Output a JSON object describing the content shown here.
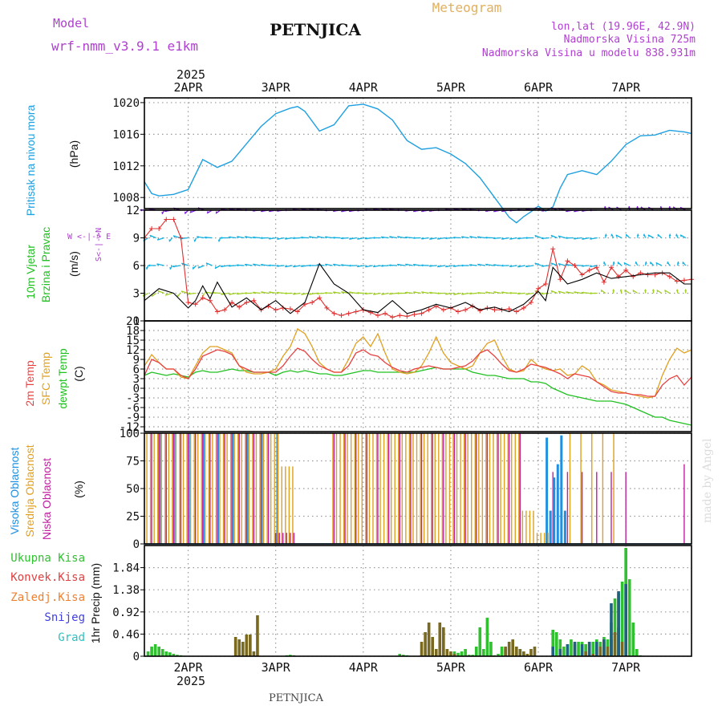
{
  "header": {
    "model_label": "Model",
    "model_name": "wrf-nmm_v3.9.1 e1km",
    "station": "PETNJICA",
    "product": "Meteogram",
    "lonlat": "lon,lat (19.96E, 42.9N)",
    "altitude": "Nadmorska Visina 725m",
    "model_altitude": "Nadmorska Visina u modelu 838.931m",
    "watermark": "made by Angel",
    "footer_station": "PETNJICA"
  },
  "colors": {
    "pressure": "#1ea0e0",
    "wind_speed": "#000000",
    "wind_gust": "#e03030",
    "temp_2m": "#e84040",
    "temp_sfc": "#e0a020",
    "dewpoint": "#20c020",
    "cloud_high": "#2090e0",
    "cloud_mid": "#e0a020",
    "cloud_low": "#c020a0",
    "precip_total": "#30c030",
    "precip_conv": "#e04040",
    "precip_frozen": "#f08030",
    "precip_snow": "#4040e0",
    "precip_hail": "#30c0c0",
    "accent_purple": "#b040d0"
  },
  "time_axis": {
    "year_label": "2025",
    "day_labels": [
      "2APR",
      "3APR",
      "4APR",
      "5APR",
      "6APR",
      "7APR"
    ],
    "start_hour": -12,
    "end_hour": 138
  },
  "chart_data": [
    {
      "type": "line",
      "panel": "pressure",
      "ylabel": "Pritisak na nivou mora",
      "unit": "(hPa)",
      "yticks": [
        1008,
        1012,
        1016,
        1020
      ],
      "ylim": [
        1006.6,
        1020.6
      ],
      "x_hours": [
        -12,
        -10,
        -8,
        -4,
        0,
        4,
        6,
        8,
        12,
        16,
        20,
        24,
        28,
        30,
        32,
        36,
        40,
        44,
        48,
        50,
        52,
        56,
        60,
        64,
        68,
        72,
        76,
        80,
        84,
        88,
        90,
        92,
        94,
        96,
        98,
        100,
        102,
        104,
        108,
        112,
        116,
        120,
        124,
        128,
        132,
        136,
        138
      ],
      "values": [
        1010,
        1008.5,
        1008.2,
        1008.4,
        1009,
        1012.8,
        1012.3,
        1011.8,
        1012.6,
        1014.8,
        1017,
        1018.6,
        1019.3,
        1019.5,
        1018.9,
        1016.4,
        1017.2,
        1019.6,
        1019.8,
        1019.5,
        1019.2,
        1017.8,
        1015.2,
        1014.1,
        1014.3,
        1013.5,
        1012.3,
        1010.5,
        1008,
        1005.5,
        1004.8,
        1005.6,
        1006.2,
        1006.9,
        1006.3,
        1006.8,
        1009.2,
        1010.9,
        1011.4,
        1010.9,
        1012.6,
        1014.7,
        1015.8,
        1015.9,
        1016.5,
        1016.3,
        1016.1
      ]
    },
    {
      "type": "line",
      "panel": "wind",
      "ylabel": "10m Vjetar Brzina i Pravac",
      "unit": "(m/s)",
      "compass": "W <-|-> E",
      "compass_v": "S<-|->N",
      "yticks": [
        0,
        3,
        6,
        9,
        12
      ],
      "ylim": [
        0,
        12
      ],
      "x_hours": [
        -12,
        -8,
        -4,
        0,
        2,
        4,
        6,
        8,
        12,
        14,
        16,
        20,
        24,
        28,
        32,
        36,
        40,
        44,
        48,
        52,
        56,
        60,
        64,
        68,
        72,
        76,
        80,
        84,
        88,
        92,
        96,
        98,
        100,
        104,
        108,
        112,
        116,
        120,
        124,
        128,
        132,
        136,
        138
      ],
      "speed": [
        2.2,
        3.5,
        3,
        1.4,
        2.2,
        3.8,
        2.4,
        4.2,
        1.5,
        2,
        2.5,
        1.2,
        2.2,
        0.8,
        2,
        6.2,
        4,
        3,
        1.2,
        0.9,
        2.2,
        0.8,
        1.2,
        1.8,
        1.4,
        2,
        1.2,
        1.5,
        1,
        1.8,
        3.2,
        2.2,
        5.8,
        4,
        4.5,
        5.2,
        4.6,
        4.8,
        5,
        5.2,
        5.2,
        4,
        4
      ],
      "gust_x_hours": [
        -12,
        -10,
        -8,
        -6,
        -4,
        -2,
        0,
        2,
        4,
        6,
        8,
        10,
        12,
        14,
        16,
        18,
        20,
        22,
        24,
        26,
        28,
        30,
        32,
        34,
        36,
        38,
        40,
        42,
        44,
        46,
        48,
        50,
        52,
        54,
        56,
        58,
        60,
        62,
        64,
        66,
        68,
        70,
        72,
        74,
        76,
        78,
        80,
        82,
        84,
        86,
        88,
        90,
        92,
        94,
        96,
        98,
        100,
        102,
        104,
        106,
        108,
        110,
        112,
        114,
        116,
        118,
        120,
        122,
        124,
        126,
        128,
        130,
        132,
        134,
        136,
        138
      ],
      "gust": [
        9,
        10,
        10,
        11,
        11,
        9,
        2,
        1.8,
        2.5,
        2.2,
        1,
        1.2,
        2,
        1.5,
        2,
        2.2,
        1.2,
        1.6,
        1.2,
        1.4,
        1.3,
        1,
        1.8,
        2,
        2.5,
        1.4,
        0.8,
        0.6,
        0.8,
        1,
        1.2,
        0.9,
        0.6,
        0.8,
        0.4,
        0.6,
        0.5,
        0.7,
        0.8,
        1.2,
        1.6,
        1.2,
        1.4,
        1,
        1.2,
        1.6,
        1.1,
        1.4,
        1.2,
        1.2,
        1.3,
        1,
        1.4,
        2,
        3.5,
        4,
        7.8,
        4.5,
        6.5,
        6,
        5,
        5.5,
        5.8,
        4.2,
        5.8,
        4.8,
        5.5,
        4.8,
        5.2,
        5,
        5,
        5.2,
        4.8,
        4.3,
        4.4,
        4.5
      ]
    },
    {
      "type": "line",
      "panel": "temperature",
      "ylabels": [
        "2m Temp",
        "SFC Temp",
        "dewpt Temp"
      ],
      "unit": "(C)",
      "yticks": [
        -12,
        -9,
        -6,
        -3,
        0,
        3,
        6,
        9,
        12,
        15,
        18,
        21
      ],
      "ylim": [
        -13.5,
        21
      ],
      "x_hours": [
        -12,
        -10,
        -8,
        -6,
        -4,
        -2,
        0,
        2,
        4,
        6,
        8,
        10,
        12,
        14,
        16,
        18,
        20,
        22,
        24,
        26,
        28,
        30,
        32,
        34,
        36,
        38,
        40,
        42,
        44,
        46,
        48,
        50,
        52,
        54,
        56,
        58,
        60,
        62,
        64,
        66,
        68,
        70,
        72,
        74,
        76,
        78,
        80,
        82,
        84,
        86,
        88,
        90,
        92,
        94,
        96,
        98,
        100,
        102,
        104,
        106,
        108,
        110,
        112,
        114,
        116,
        118,
        120,
        122,
        124,
        126,
        128,
        130,
        132,
        134,
        136,
        138
      ],
      "temp_2m": [
        4,
        9,
        8,
        6,
        6,
        4,
        3,
        6,
        10,
        11,
        12,
        11.5,
        10.5,
        7,
        6,
        5,
        5,
        5,
        5,
        7,
        10,
        12.5,
        11.5,
        9,
        7,
        6,
        5,
        5,
        7,
        11,
        12,
        10.5,
        10,
        8,
        6.5,
        5.5,
        5,
        6,
        6.5,
        7,
        6.5,
        6,
        6,
        6.5,
        7,
        8.5,
        11,
        12,
        10,
        7.5,
        5.5,
        5,
        6,
        7.5,
        7,
        6.5,
        5.5,
        4.5,
        3,
        4.5,
        4,
        3.5,
        2,
        0.5,
        -1,
        -1.5,
        -1.5,
        -2,
        -2,
        -2.5,
        -2.5,
        1,
        3,
        4,
        1,
        3.5
      ],
      "temp_sfc": [
        7,
        10.5,
        8,
        6,
        6,
        3.5,
        3,
        7,
        11,
        13,
        13,
        12,
        11,
        7,
        5,
        4.5,
        4.5,
        5,
        6,
        10,
        13,
        18.5,
        17,
        13,
        8,
        6,
        5,
        5,
        9,
        14,
        16,
        13,
        17,
        11,
        6,
        5,
        4.5,
        5,
        7,
        11,
        16,
        11,
        8,
        7,
        6,
        7,
        11,
        14,
        15,
        10,
        6,
        5,
        5.5,
        9,
        7,
        6,
        5.5,
        6,
        4,
        4.5,
        7,
        5.5,
        2,
        1,
        -0.5,
        -1,
        -1.5,
        -2,
        -2.5,
        -3,
        -2.5,
        4,
        9,
        12.5,
        11,
        12
      ],
      "dewpoint": [
        4,
        5,
        4.5,
        4,
        4.5,
        4,
        3.5,
        5,
        5.5,
        5,
        5,
        5.5,
        6,
        5.5,
        5.5,
        5,
        5,
        5,
        4,
        5,
        5.5,
        5,
        5.5,
        5,
        4.5,
        4.5,
        4,
        4,
        4.5,
        5,
        5.5,
        5.5,
        5,
        5,
        5,
        5,
        5,
        5,
        5.5,
        6,
        6.5,
        6,
        6,
        6,
        6,
        5,
        4.5,
        4,
        4,
        3.5,
        3,
        3,
        3,
        2,
        2,
        1.5,
        0,
        -1,
        -2,
        -2.5,
        -3,
        -3.5,
        -4,
        -4,
        -4,
        -4.5,
        -5,
        -6,
        -7,
        -8,
        -9,
        -9,
        -10,
        -10.5,
        -11,
        -11.5
      ]
    },
    {
      "type": "bar",
      "panel": "clouds",
      "ylabels": [
        "Visoka Oblacnost",
        "Srednja Oblacnost",
        "Niska Oblacnost"
      ],
      "unit": "(%)",
      "yticks": [
        0,
        25,
        50,
        75,
        100
      ],
      "ylim": [
        0,
        100
      ],
      "step_hours": 1
    },
    {
      "type": "bar",
      "panel": "precipitation",
      "legend": [
        "Ukupna Kisa",
        "Konvek.Kisa",
        "Zaledj.Kisa",
        "Snijeg",
        "Grad"
      ],
      "ylabel": "1hr Precip (mm)",
      "yticks": [
        0,
        0.46,
        0.92,
        1.38,
        1.84
      ],
      "ylim": [
        0,
        2.3
      ],
      "total_hours": [
        -11,
        -10,
        -9,
        -8,
        -7,
        -6,
        -5,
        -4,
        -3,
        -2,
        27,
        28,
        29,
        58,
        59,
        60,
        64,
        65,
        66,
        67,
        68,
        72,
        73,
        74,
        75,
        76,
        77,
        78,
        79,
        80,
        81,
        82,
        83,
        84,
        85,
        86,
        87,
        88,
        89,
        90,
        91,
        92,
        93,
        94,
        95,
        100,
        101,
        102,
        103,
        104,
        105,
        106,
        107,
        108,
        109,
        110,
        111,
        112,
        113,
        114,
        115,
        116,
        117,
        118,
        119,
        120,
        121,
        122,
        123,
        124,
        125,
        126,
        127,
        128,
        129,
        130,
        131,
        132,
        133,
        134,
        135,
        136,
        137
      ],
      "total": [
        0.1,
        0.2,
        0.25,
        0.2,
        0.15,
        0.1,
        0.08,
        0.05,
        0.03,
        0.02,
        0.02,
        0.03,
        0.02,
        0.05,
        0.03,
        0.02,
        0.02,
        0.03,
        0.04,
        0.05,
        0.02,
        0.05,
        0.1,
        0.07,
        0.1,
        0.15,
        0.03,
        0.03,
        0.2,
        0.6,
        0.15,
        0.8,
        0.3,
        0.02,
        0.05,
        0.2,
        0.15,
        0.02,
        0.05,
        0.2,
        0.15,
        0.05,
        0.02,
        0.02,
        0.01,
        0.55,
        0.5,
        0.35,
        0.2,
        0.25,
        0.35,
        0.25,
        0.3,
        0.3,
        0.25,
        0.3,
        0.3,
        0.35,
        0.3,
        0.4,
        0.35,
        0.7,
        1.2,
        1.3,
        1.55,
        2.25,
        1.6,
        0.7,
        0.15,
        0.02,
        0.01,
        0,
        0,
        0,
        0,
        0,
        0,
        0,
        0,
        0,
        0,
        0,
        0
      ],
      "conv_hours": [
        13,
        14,
        15,
        16,
        17,
        18,
        19,
        64,
        65,
        66,
        67,
        68,
        69,
        70,
        71,
        72,
        73,
        87,
        88,
        89,
        90,
        91,
        92,
        93,
        94,
        95,
        108,
        109,
        110,
        111,
        112,
        113,
        114,
        115,
        116,
        117,
        118,
        119
      ],
      "conv": [
        0.4,
        0.35,
        0.3,
        0.45,
        0.45,
        0.1,
        0.85,
        0.3,
        0.5,
        0.7,
        0.4,
        0.15,
        0.7,
        0.6,
        0.15,
        0.1,
        0.05,
        0.2,
        0.3,
        0.35,
        0.2,
        0.15,
        0.1,
        0.05,
        0.15,
        0.2,
        0.05,
        0.1,
        0.05,
        0.05,
        0.15,
        0.2,
        0.3,
        0.2,
        0.35,
        0.5,
        0.6,
        0.3
      ],
      "snow_hours": [
        100,
        102,
        104,
        106,
        108,
        110,
        112,
        114,
        116,
        118,
        120
      ],
      "snow": [
        0.2,
        0.15,
        0.25,
        0.3,
        0.25,
        0.3,
        0.3,
        0.35,
        1.1,
        1.35,
        1.5
      ]
    }
  ]
}
